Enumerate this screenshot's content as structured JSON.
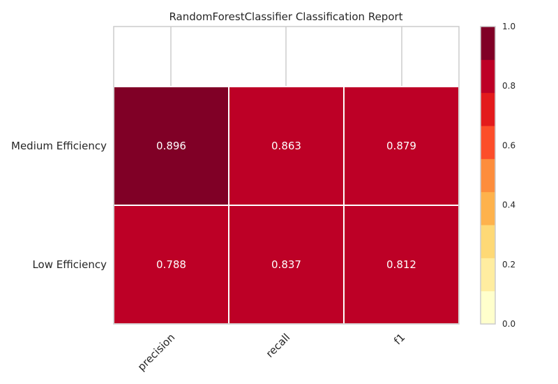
{
  "chart_data": {
    "type": "heatmap",
    "title": "RandomForestClassifier Classification Report",
    "columns": [
      "precision",
      "recall",
      "f1"
    ],
    "rows": [
      "Medium Efficiency",
      "Low Efficiency"
    ],
    "values": [
      [
        0.896,
        0.863,
        0.879
      ],
      [
        0.788,
        0.837,
        0.812
      ]
    ],
    "value_labels": [
      [
        "0.896",
        "0.863",
        "0.879"
      ],
      [
        "0.788",
        "0.837",
        "0.812"
      ]
    ],
    "colorbar": {
      "range": [
        0.0,
        1.0
      ],
      "ticks": [
        "0.0",
        "0.2",
        "0.4",
        "0.6",
        "0.8",
        "1.0"
      ],
      "tick_values": [
        0.0,
        0.2,
        0.4,
        0.6,
        0.8,
        1.0
      ],
      "bins": 9,
      "colors": [
        "#ffffcc",
        "#ffeda0",
        "#fed976",
        "#feb24c",
        "#fd8d3c",
        "#fc4e2a",
        "#e31a1c",
        "#bd0026",
        "#800026"
      ]
    },
    "xlabel": "",
    "ylabel": "",
    "grid": true
  }
}
